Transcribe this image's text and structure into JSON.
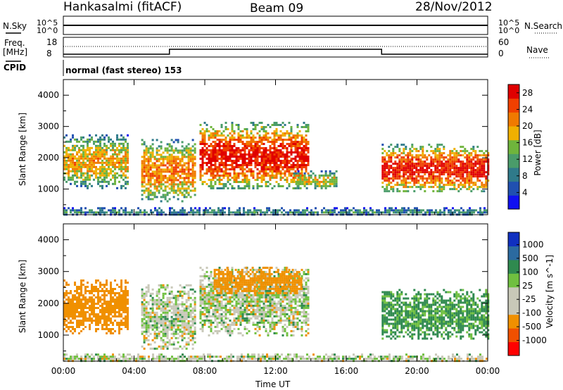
{
  "header": {
    "station": "Hankasalmi (fitACF)",
    "beam": "Beam 09",
    "date": "28/Nov/2012"
  },
  "info_panel": {
    "left_top": "N.Sky",
    "left_freq_1": "Freq.",
    "left_freq_2": "[MHz]",
    "left_cpid": "CPID",
    "right_top": "N.Search",
    "right_mid": "Nave",
    "axis_nsky_top": "10^5",
    "axis_nsky_bottom": "10^0",
    "axis_nsearch_top": "10^5",
    "axis_nsearch_bottom": "10^0",
    "axis_freq_top": "18",
    "axis_freq_bottom": "8",
    "axis_nave_top": "60",
    "axis_nave_bottom": "0",
    "cpid_text": "normal (fast stereo) 153"
  },
  "colors": {
    "power_scale": [
      "#1010f0",
      "#2050b0",
      "#2f7a8a",
      "#4a9c6a",
      "#6fb43c",
      "#f0b000",
      "#f07a00",
      "#f04000",
      "#e00000"
    ],
    "velocity_scale": [
      "#ff0000",
      "#f05000",
      "#f09000",
      "#c8c8b8",
      "#c8c8b8",
      "#70c040",
      "#2f8a4f",
      "#2b6aa0",
      "#1030c0"
    ],
    "ground_scatter": "#c8c8b8"
  },
  "chart_data": [
    {
      "type": "heatmap",
      "name_text": "Power [dB]",
      "ylabel": "Slant Range [km]",
      "xlabel": "Time UT",
      "x_range_hours": [
        0,
        24
      ],
      "ylim": [
        180,
        4500
      ],
      "yticks": [
        "1000",
        "2000",
        "3000",
        "4000"
      ],
      "xticks": [
        "00:00",
        "04:00",
        "08:00",
        "12:00",
        "16:00",
        "20:00",
        "00:00"
      ],
      "colorbar_label": "Power [dB]",
      "colorbar_ticks": [
        "28",
        "24",
        "20",
        "16",
        "12",
        "8",
        "4"
      ],
      "colorbar_range": [
        0,
        30
      ],
      "echo_regions": [
        {
          "t_start": 0.0,
          "t_end": 3.6,
          "r_low": 1050,
          "r_high": 2750,
          "peak_db": 20
        },
        {
          "t_start": 4.4,
          "t_end": 7.5,
          "r_low": 600,
          "r_high": 2600,
          "peak_db": 22
        },
        {
          "t_start": 7.7,
          "t_end": 13.8,
          "r_low": 1000,
          "r_high": 3150,
          "peak_db": 28
        },
        {
          "t_start": 13.0,
          "t_end": 15.5,
          "r_low": 1000,
          "r_high": 1600,
          "peak_db": 18
        },
        {
          "t_start": 18.0,
          "t_end": 24.0,
          "r_low": 900,
          "r_high": 2450,
          "peak_db": 28
        },
        {
          "t_start": 0.0,
          "t_end": 24.0,
          "r_low": 180,
          "r_high": 420,
          "peak_db": 10
        }
      ]
    },
    {
      "type": "heatmap",
      "ylabel": "Slant Range [km]",
      "xlabel": "Time UT",
      "x_range_hours": [
        0,
        24
      ],
      "ylim": [
        180,
        4500
      ],
      "yticks": [
        "1000",
        "2000",
        "3000",
        "4000"
      ],
      "xticks": [
        "00:00",
        "04:00",
        "08:00",
        "12:00",
        "16:00",
        "20:00",
        "00:00"
      ],
      "colorbar_label": "Velocity [m s^-1]",
      "colorbar_ticks": [
        "1000",
        "500",
        "100",
        "25",
        "-25",
        "-100",
        "-500",
        "-1000"
      ],
      "echo_regions": [
        {
          "t_start": 0.0,
          "t_end": 3.6,
          "r_low": 1050,
          "r_high": 2750,
          "velocity_ms": -300
        },
        {
          "t_start": 4.4,
          "t_end": 7.5,
          "r_low": 600,
          "r_high": 2600,
          "velocity_ms": 0
        },
        {
          "t_start": 7.7,
          "t_end": 13.8,
          "r_low": 1000,
          "r_high": 3150,
          "velocity_ms": 0
        },
        {
          "t_start": 8.5,
          "t_end": 13.5,
          "r_low": 2300,
          "r_high": 3150,
          "velocity_ms": -300
        },
        {
          "t_start": 18.0,
          "t_end": 24.0,
          "r_low": 900,
          "r_high": 2450,
          "velocity_ms": 150
        },
        {
          "t_start": 0.0,
          "t_end": 24.0,
          "r_low": 180,
          "r_high": 420,
          "velocity_ms": 0
        }
      ]
    }
  ]
}
